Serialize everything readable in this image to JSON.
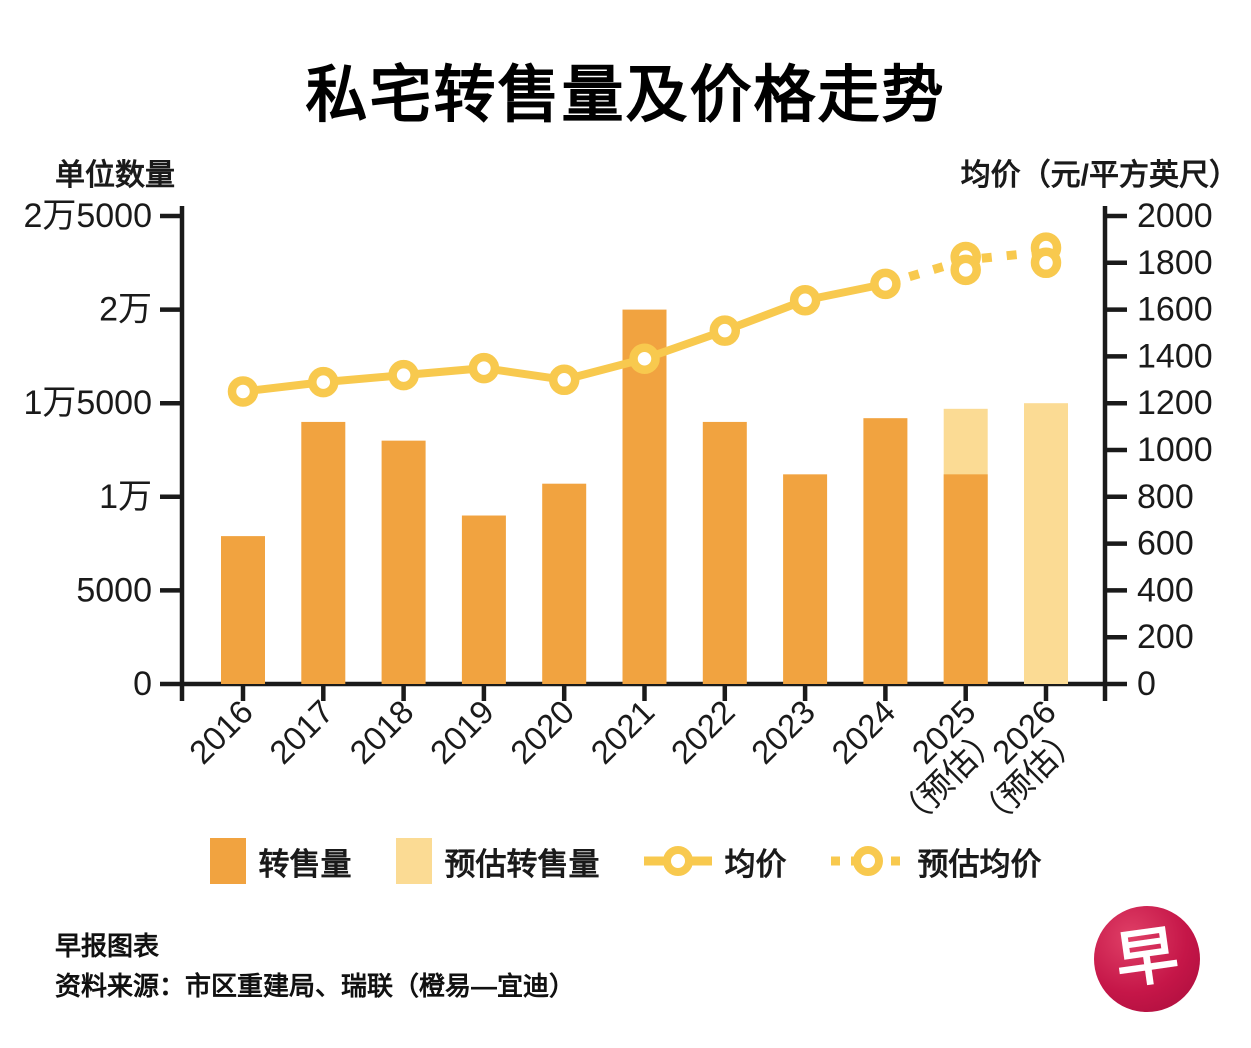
{
  "chart_data": {
    "type": "bar+line",
    "title": "私宅转售量及价格走势",
    "left_axis_label": "单位数量",
    "right_axis_label": "均价（元/平方英尺）",
    "categories": [
      "2016",
      "2017",
      "2018",
      "2019",
      "2020",
      "2021",
      "2022",
      "2023",
      "2024",
      "2025",
      "2026"
    ],
    "category_sublabels": {
      "2025": "（预估）",
      "2026": "（预估）"
    },
    "left_axis_ticks": [
      "2万5000",
      "2万",
      "1万5000",
      "1万",
      "5000",
      "0"
    ],
    "right_axis_ticks": [
      "2000",
      "1800",
      "1600",
      "1400",
      "1200",
      "1000",
      "800",
      "600",
      "400",
      "200",
      "0"
    ],
    "ylim_left": [
      0,
      25000
    ],
    "ylim_right": [
      0,
      2000
    ],
    "grid": false,
    "legend_position": "bottom",
    "series": [
      {
        "name": "转售量",
        "type": "bar",
        "axis": "left",
        "color": "#F1A340",
        "values": [
          7900,
          14000,
          13000,
          9000,
          10700,
          20000,
          14000,
          11200,
          14200,
          11200,
          null
        ]
      },
      {
        "name": "预估转售量",
        "type": "bar",
        "axis": "left",
        "color": "#FBDB94",
        "values": [
          null,
          null,
          null,
          null,
          null,
          null,
          null,
          null,
          null,
          14700,
          15000
        ]
      },
      {
        "name": "均价",
        "type": "line",
        "axis": "right",
        "color": "#F8C94E",
        "x": [
          "2016",
          "2017",
          "2018",
          "2019",
          "2020",
          "2021",
          "2022",
          "2023",
          "2024"
        ],
        "values": [
          1250,
          1290,
          1320,
          1350,
          1300,
          1390,
          1510,
          1640,
          1710
        ]
      },
      {
        "name": "预估均价",
        "type": "dashed-line",
        "axis": "right",
        "color": "#F8C94E",
        "points": [
          {
            "x": "2025",
            "y": 1770
          },
          {
            "x": "2025",
            "y": 1825
          },
          {
            "x": "2026",
            "y": 1800
          },
          {
            "x": "2026",
            "y": 1865
          }
        ]
      }
    ]
  },
  "footer": {
    "brand": "早报图表",
    "source": "资料来源：市区重建局、瑞联（橙易—宜迪）",
    "logo_char": "早"
  },
  "colors": {
    "bar": "#F1A340",
    "bar_estimated": "#FBDB94",
    "price_line": "#F8C94E",
    "axis": "#1a1a1a",
    "logo_red": "#C51648",
    "background": "#ffffff"
  }
}
